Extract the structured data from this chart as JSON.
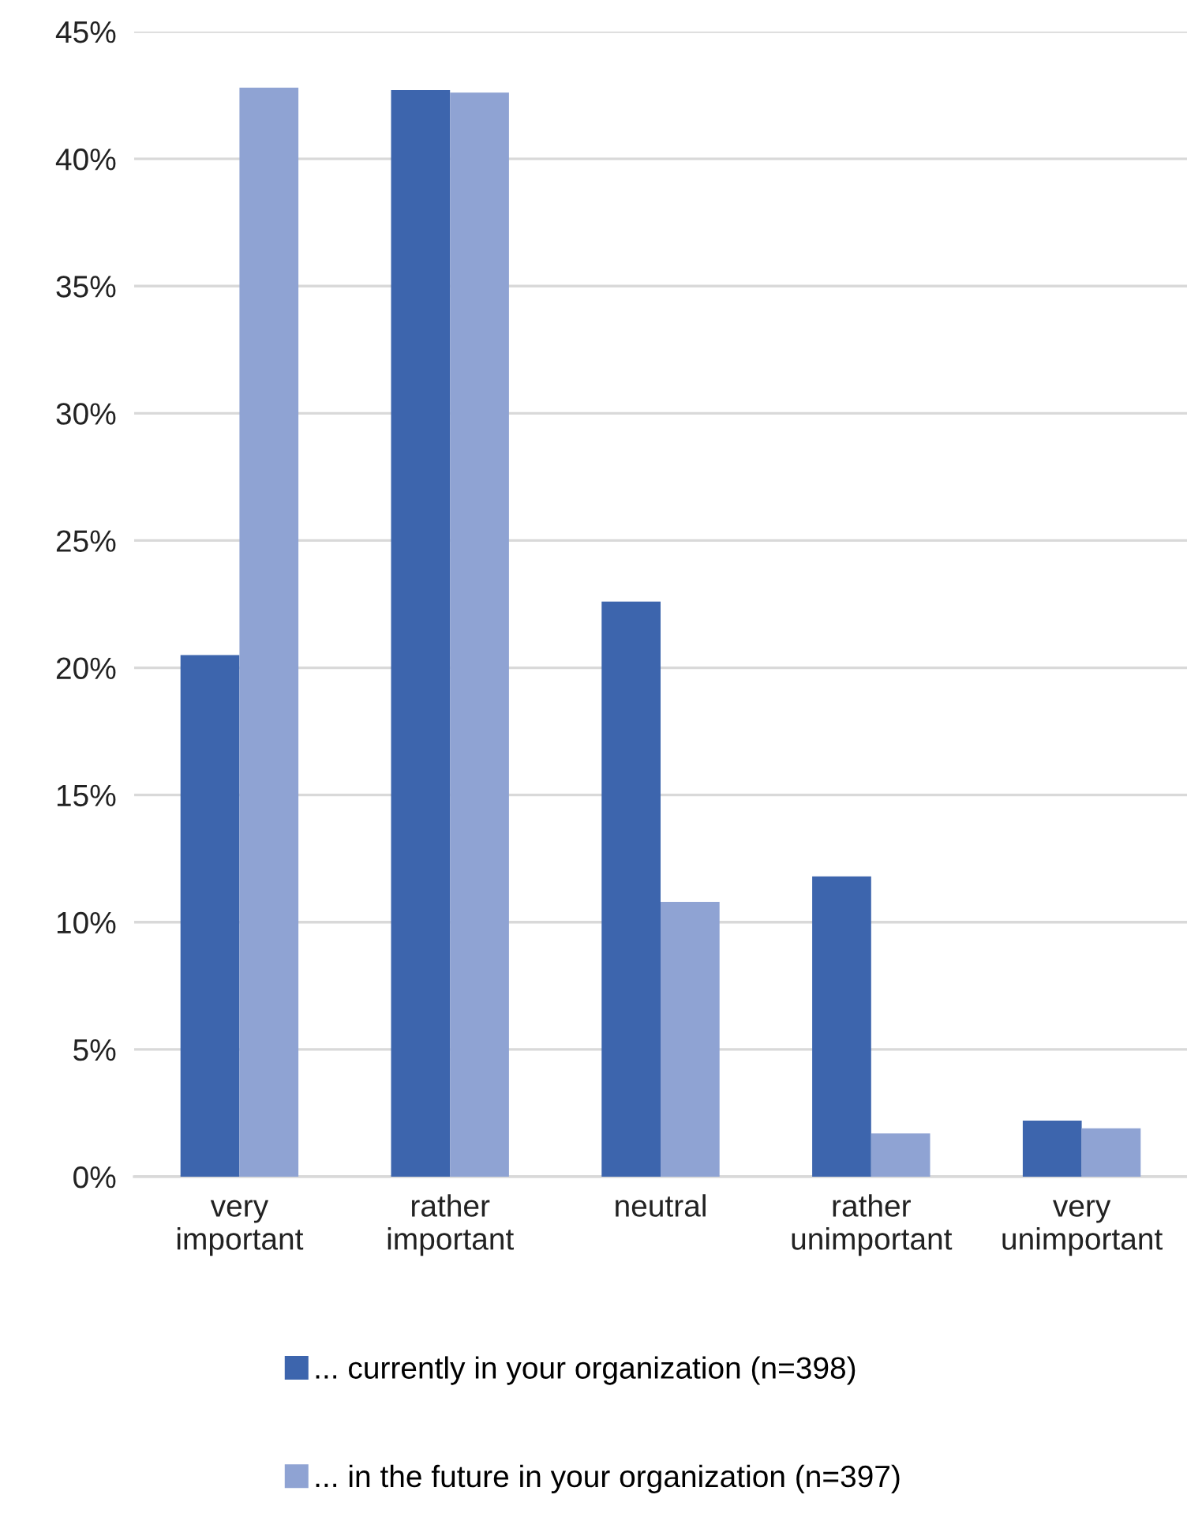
{
  "chart_data": {
    "type": "bar",
    "categories": [
      "very\nimportant",
      "rather\nimportant",
      "neutral",
      "rather\nunimportant",
      "very\nunimportant"
    ],
    "series": [
      {
        "name": "... currently in your organization (n=398)",
        "color": "#3d65ad",
        "values": [
          20.5,
          42.7,
          22.6,
          11.8,
          2.2
        ]
      },
      {
        "name": "... in the future in your organization (n=397)",
        "color": "#8fa3d3",
        "values": [
          42.8,
          42.6,
          10.8,
          1.7,
          1.9
        ]
      }
    ],
    "ylim": [
      0,
      45
    ],
    "yticks": [
      {
        "value": 0,
        "label": "0%"
      },
      {
        "value": 5,
        "label": "5%"
      },
      {
        "value": 10,
        "label": "10%"
      },
      {
        "value": 15,
        "label": "15%"
      },
      {
        "value": 20,
        "label": "20%"
      },
      {
        "value": 25,
        "label": "25%"
      },
      {
        "value": 30,
        "label": "30%"
      },
      {
        "value": 35,
        "label": "35%"
      },
      {
        "value": 40,
        "label": "40%"
      },
      {
        "value": 45,
        "label": "45%"
      }
    ],
    "grid": "y",
    "legend": "bottom"
  }
}
